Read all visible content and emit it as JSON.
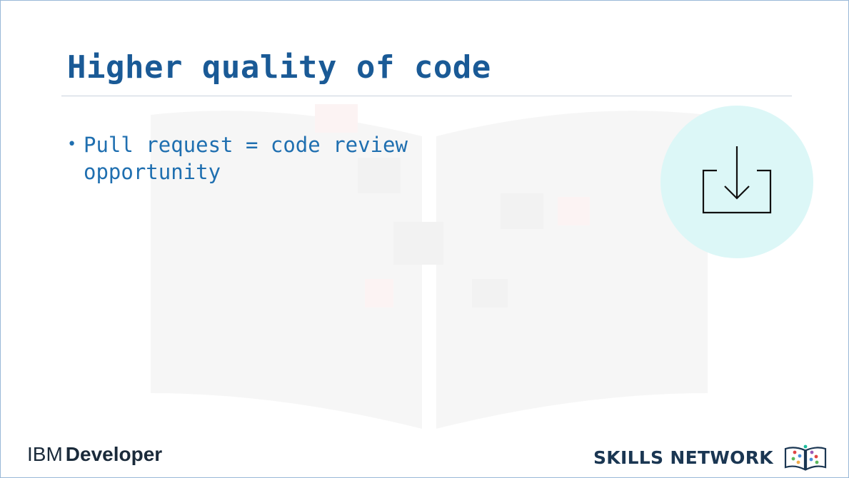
{
  "slide": {
    "title": "Higher quality of code",
    "bullets": [
      {
        "marker": "•",
        "text": "Pull request = code review opportunity"
      }
    ],
    "icon": "download-icon"
  },
  "footer": {
    "left_brand": "IBM",
    "left_product": "Developer",
    "right_text": "SKILLS NETWORK",
    "right_logo": "skills-network-book-icon"
  },
  "colors": {
    "title": "#1a5a96",
    "bullet": "#1f6fb0",
    "icon_circle": "#dcf7f7",
    "divider": "#c9d3dd",
    "footer_text": "#1a3652"
  }
}
